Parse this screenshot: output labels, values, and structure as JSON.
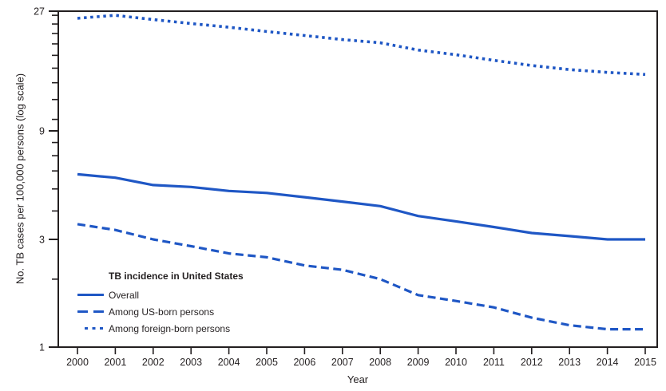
{
  "figure": {
    "y_axis_label": "No. TB cases per 100,000 persons (log scale)",
    "x_axis_label": "Year",
    "legend": {
      "title": "TB incidence in United States",
      "items": [
        {
          "label": "Overall",
          "style": "solid"
        },
        {
          "label": "Among US-born persons",
          "style": "dashed"
        },
        {
          "label": "Among foreign-born persons",
          "style": "dotted"
        }
      ]
    },
    "colors": {
      "line_blue": "#1f57c5",
      "axis": "#231f20",
      "text": "#231f20",
      "background": "#ffffff"
    }
  },
  "chart_data": {
    "type": "line",
    "title": "",
    "xlabel": "Year",
    "ylabel": "No. TB cases per 100,000 persons (log scale)",
    "y_scale": "log",
    "ylim": [
      1,
      27
    ],
    "y_ticks_major": [
      1,
      3,
      9,
      27
    ],
    "y_ticks_minor": [
      2,
      4,
      5,
      6,
      7,
      8,
      10,
      12,
      14,
      16,
      18,
      20,
      22,
      24,
      26
    ],
    "grid": false,
    "legend_position": "inside-lower-left",
    "x": [
      2000,
      2001,
      2002,
      2003,
      2004,
      2005,
      2006,
      2007,
      2008,
      2009,
      2010,
      2011,
      2012,
      2013,
      2014,
      2015
    ],
    "series": [
      {
        "name": "Overall",
        "line_style": "solid",
        "values": [
          5.8,
          5.6,
          5.2,
          5.1,
          4.9,
          4.8,
          4.6,
          4.4,
          4.2,
          3.8,
          3.6,
          3.4,
          3.2,
          3.1,
          3.0,
          3.0
        ]
      },
      {
        "name": "Among US-born persons",
        "line_style": "dashed",
        "values": [
          3.5,
          3.3,
          3.0,
          2.8,
          2.6,
          2.5,
          2.3,
          2.2,
          2.0,
          1.7,
          1.6,
          1.5,
          1.35,
          1.25,
          1.2,
          1.2
        ]
      },
      {
        "name": "Among foreign-born persons",
        "line_style": "dotted",
        "values": [
          25.3,
          26.0,
          25.0,
          24.1,
          23.3,
          22.4,
          21.6,
          20.8,
          20.2,
          18.9,
          18.1,
          17.2,
          16.4,
          15.8,
          15.4,
          15.1
        ]
      }
    ]
  }
}
